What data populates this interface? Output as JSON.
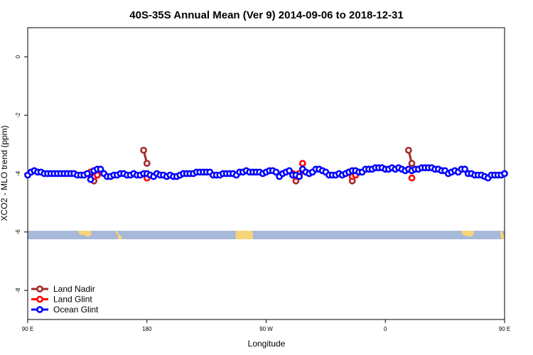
{
  "chart_data": {
    "type": "line",
    "title": "40S-35S Annual Mean (Ver 9)   2014-09-06 to 2018-12-31",
    "xlabel": "Longitude",
    "ylabel": "XCO2 - MLO trend (ppm)",
    "xlim": [
      90,
      450
    ],
    "ylim": [
      -9,
      1
    ],
    "x_ticks": [
      {
        "value": 90,
        "label": "90 E"
      },
      {
        "value": 180,
        "label": "180"
      },
      {
        "value": 270,
        "label": "90 W"
      },
      {
        "value": 360,
        "label": "0"
      },
      {
        "value": 450,
        "label": "90 E"
      },
      {
        "value": 540,
        "label": "180"
      }
    ],
    "y_ticks": [
      {
        "value": 0,
        "label": "0"
      },
      {
        "value": -2,
        "label": "-2"
      },
      {
        "value": -4,
        "label": "-4"
      },
      {
        "value": -6,
        "label": "-6"
      },
      {
        "value": -8,
        "label": "-8"
      }
    ],
    "grid": false,
    "legend_position": "bottom-left",
    "series": [
      {
        "name": "Land Nadir",
        "color": "#a52a2a",
        "segments": [
          [
            [
              137.5,
              -3.95
            ],
            [
              140,
              -4.25
            ],
            [
              142.5,
              -4.05
            ]
          ],
          [
            [
              177.5,
              -3.2
            ],
            [
              180,
              -3.65
            ]
          ],
          [
            [
              290,
              -4.0
            ],
            [
              292.5,
              -4.25
            ],
            [
              295,
              -4.05
            ]
          ],
          [
            [
              332.5,
              -3.95
            ],
            [
              335,
              -4.25
            ],
            [
              337.5,
              -4.05
            ]
          ],
          [
            [
              377.5,
              -3.2
            ],
            [
              380,
              -3.65
            ]
          ]
        ]
      },
      {
        "name": "Land Glint",
        "color": "#ff0000",
        "segments": [
          [
            [
              137.5,
              -3.95
            ],
            [
              140,
              -4.1
            ],
            [
              142.5,
              -4.05
            ]
          ],
          [
            [
              180,
              -4.15
            ]
          ],
          [
            [
              290,
              -4.0
            ],
            [
              292.5,
              -4.1
            ],
            [
              295,
              -4.0
            ],
            [
              297.5,
              -3.65
            ]
          ],
          [
            [
              332.5,
              -3.95
            ],
            [
              335,
              -4.1
            ],
            [
              337.5,
              -4.05
            ]
          ],
          [
            [
              380,
              -4.15
            ]
          ]
        ]
      },
      {
        "name": "Ocean Glint",
        "color": "#0000ff",
        "segments": [
          [
            [
              90,
              -4.05
            ],
            [
              92.5,
              -3.95
            ],
            [
              95,
              -3.9
            ],
            [
              97.5,
              -3.95
            ],
            [
              100,
              -3.95
            ],
            [
              102.5,
              -4.0
            ],
            [
              105,
              -4.0
            ],
            [
              107.5,
              -4.0
            ],
            [
              110,
              -4.0
            ],
            [
              112.5,
              -4.0
            ],
            [
              115,
              -4.0
            ],
            [
              117.5,
              -4.0
            ],
            [
              120,
              -4.0
            ],
            [
              122.5,
              -4.0
            ],
            [
              125,
              -4.0
            ],
            [
              127.5,
              -4.05
            ],
            [
              130,
              -4.05
            ],
            [
              132.5,
              -4.05
            ],
            [
              135,
              -4.0
            ],
            [
              137.5,
              -4.2
            ],
            [
              140,
              -3.9
            ],
            [
              142.5,
              -3.85
            ],
            [
              145,
              -3.85
            ],
            [
              147.5,
              -4.0
            ],
            [
              150,
              -4.1
            ],
            [
              152.5,
              -4.1
            ],
            [
              155,
              -4.05
            ],
            [
              157.5,
              -4.05
            ],
            [
              160,
              -4.0
            ],
            [
              162.5,
              -4.0
            ],
            [
              165,
              -4.05
            ],
            [
              167.5,
              -4.05
            ],
            [
              170,
              -4.0
            ],
            [
              172.5,
              -4.05
            ],
            [
              175,
              -4.05
            ],
            [
              177.5,
              -4.0
            ],
            [
              180,
              -4.0
            ],
            [
              182.5,
              -4.05
            ],
            [
              185,
              -4.1
            ],
            [
              187.5,
              -4.0
            ],
            [
              190,
              -4.05
            ],
            [
              192.5,
              -4.05
            ],
            [
              195,
              -4.1
            ],
            [
              197.5,
              -4.05
            ],
            [
              200,
              -4.1
            ],
            [
              202.5,
              -4.1
            ],
            [
              205,
              -4.05
            ],
            [
              207.5,
              -4.0
            ],
            [
              210,
              -4.0
            ],
            [
              212.5,
              -4.0
            ],
            [
              215,
              -4.0
            ],
            [
              217.5,
              -3.95
            ],
            [
              220,
              -3.95
            ],
            [
              222.5,
              -3.95
            ],
            [
              225,
              -3.95
            ],
            [
              227.5,
              -3.95
            ],
            [
              230,
              -4.05
            ],
            [
              232.5,
              -4.05
            ],
            [
              235,
              -4.05
            ],
            [
              237.5,
              -4.0
            ],
            [
              240,
              -4.0
            ],
            [
              242.5,
              -4.0
            ],
            [
              245,
              -4.0
            ],
            [
              247.5,
              -4.05
            ],
            [
              250,
              -3.95
            ],
            [
              252.5,
              -3.95
            ],
            [
              255,
              -3.9
            ],
            [
              257.5,
              -3.95
            ],
            [
              260,
              -3.95
            ],
            [
              262.5,
              -3.95
            ],
            [
              265,
              -3.95
            ],
            [
              267.5,
              -4.0
            ],
            [
              270,
              -3.95
            ],
            [
              272.5,
              -3.9
            ],
            [
              275,
              -3.9
            ],
            [
              277.5,
              -3.95
            ],
            [
              280,
              -4.1
            ],
            [
              282.5,
              -4.0
            ],
            [
              285,
              -3.95
            ],
            [
              287.5,
              -3.9
            ],
            [
              290,
              -4.05
            ],
            [
              292.5,
              -4.05
            ],
            [
              295,
              -4.1
            ],
            [
              297.5,
              -3.85
            ],
            [
              300,
              -3.95
            ],
            [
              302.5,
              -4.0
            ],
            [
              305,
              -3.95
            ],
            [
              307.5,
              -3.85
            ],
            [
              310,
              -3.85
            ],
            [
              312.5,
              -3.9
            ],
            [
              315,
              -3.95
            ],
            [
              317.5,
              -4.05
            ],
            [
              320,
              -4.05
            ],
            [
              322.5,
              -4.05
            ],
            [
              325,
              -4.0
            ],
            [
              327.5,
              -4.05
            ],
            [
              330,
              -4.0
            ],
            [
              332.5,
              -3.95
            ],
            [
              335,
              -3.9
            ],
            [
              337.5,
              -3.9
            ],
            [
              340,
              -3.95
            ],
            [
              342.5,
              -3.95
            ],
            [
              345,
              -3.85
            ],
            [
              347.5,
              -3.85
            ],
            [
              350,
              -3.85
            ],
            [
              352.5,
              -3.8
            ],
            [
              355,
              -3.8
            ],
            [
              357.5,
              -3.8
            ],
            [
              360,
              -3.85
            ],
            [
              362.5,
              -3.85
            ],
            [
              365,
              -3.8
            ],
            [
              367.5,
              -3.85
            ],
            [
              370,
              -3.8
            ],
            [
              372.5,
              -3.85
            ],
            [
              375,
              -3.9
            ],
            [
              377.5,
              -3.85
            ],
            [
              380,
              -3.9
            ],
            [
              382.5,
              -3.85
            ],
            [
              385,
              -3.85
            ],
            [
              387.5,
              -3.8
            ],
            [
              390,
              -3.8
            ],
            [
              392.5,
              -3.8
            ],
            [
              395,
              -3.8
            ],
            [
              397.5,
              -3.85
            ],
            [
              400,
              -3.85
            ],
            [
              402.5,
              -3.9
            ],
            [
              405,
              -3.9
            ],
            [
              407.5,
              -4.0
            ],
            [
              410,
              -3.95
            ],
            [
              412.5,
              -3.9
            ],
            [
              415,
              -3.95
            ],
            [
              417.5,
              -3.85
            ],
            [
              420,
              -3.85
            ],
            [
              422.5,
              -4.0
            ],
            [
              425,
              -4.0
            ],
            [
              427.5,
              -4.05
            ],
            [
              430,
              -4.05
            ],
            [
              432.5,
              -4.05
            ],
            [
              435,
              -4.1
            ],
            [
              437.5,
              -4.15
            ],
            [
              440,
              -4.05
            ],
            [
              442.5,
              -4.05
            ],
            [
              445,
              -4.05
            ],
            [
              447.5,
              -4.05
            ],
            [
              450,
              -4.0
            ]
          ]
        ]
      }
    ]
  }
}
